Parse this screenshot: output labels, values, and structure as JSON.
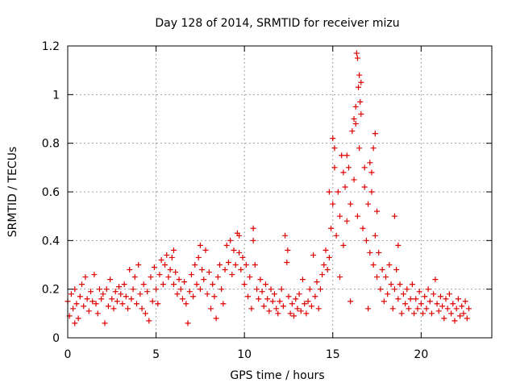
{
  "chart_data": {
    "type": "scatter",
    "title": "Day 128 of 2014, SRMTID for receiver mizu",
    "xlabel": "GPS time / hours",
    "ylabel": "SRMTID / TECUs",
    "xlim": [
      0,
      24
    ],
    "ylim": [
      0,
      1.2
    ],
    "xticks": [
      0,
      5,
      10,
      15,
      20
    ],
    "xtick_labels": [
      "0",
      "5",
      "10",
      "15",
      "20"
    ],
    "yticks": [
      0,
      0.2,
      0.4,
      0.6,
      0.8,
      1.0,
      1.2
    ],
    "ytick_labels": [
      "0",
      "0.2",
      "0.4",
      "0.6",
      "0.8",
      "1",
      "1.2"
    ],
    "grid": true,
    "marker": "+",
    "series": [
      {
        "name": "SRMTID",
        "color": "#e00000",
        "points": [
          [
            0.0,
            0.15
          ],
          [
            0.1,
            0.09
          ],
          [
            0.2,
            0.18
          ],
          [
            0.3,
            0.12
          ],
          [
            0.4,
            0.2
          ],
          [
            0.5,
            0.14
          ],
          [
            0.6,
            0.08
          ],
          [
            0.7,
            0.17
          ],
          [
            0.8,
            0.22
          ],
          [
            0.9,
            0.13
          ],
          [
            1.0,
            0.25
          ],
          [
            1.1,
            0.16
          ],
          [
            1.2,
            0.11
          ],
          [
            1.3,
            0.19
          ],
          [
            1.4,
            0.15
          ],
          [
            1.5,
            0.26
          ],
          [
            1.6,
            0.14
          ],
          [
            1.7,
            0.1
          ],
          [
            1.8,
            0.2
          ],
          [
            1.9,
            0.16
          ],
          [
            2.0,
            0.18
          ],
          [
            2.1,
            0.06
          ],
          [
            2.2,
            0.2
          ],
          [
            2.3,
            0.13
          ],
          [
            2.4,
            0.24
          ],
          [
            2.5,
            0.16
          ],
          [
            2.6,
            0.12
          ],
          [
            2.7,
            0.19
          ],
          [
            2.8,
            0.15
          ],
          [
            2.9,
            0.21
          ],
          [
            3.0,
            0.18
          ],
          [
            3.1,
            0.14
          ],
          [
            3.2,
            0.22
          ],
          [
            3.3,
            0.17
          ],
          [
            3.4,
            0.12
          ],
          [
            3.5,
            0.28
          ],
          [
            3.6,
            0.16
          ],
          [
            3.7,
            0.2
          ],
          [
            3.8,
            0.25
          ],
          [
            3.9,
            0.14
          ],
          [
            4.0,
            0.3
          ],
          [
            4.1,
            0.18
          ],
          [
            4.2,
            0.12
          ],
          [
            4.3,
            0.22
          ],
          [
            4.4,
            0.1
          ],
          [
            4.5,
            0.19
          ],
          [
            4.6,
            0.07
          ],
          [
            4.7,
            0.25
          ],
          [
            4.8,
            0.15
          ],
          [
            4.9,
            0.29
          ],
          [
            5.0,
            0.2
          ],
          [
            5.1,
            0.14
          ],
          [
            5.2,
            0.26
          ],
          [
            5.3,
            0.32
          ],
          [
            5.4,
            0.22
          ],
          [
            5.5,
            0.3
          ],
          [
            5.6,
            0.34
          ],
          [
            5.7,
            0.25
          ],
          [
            5.8,
            0.28
          ],
          [
            5.9,
            0.33
          ],
          [
            6.0,
            0.22
          ],
          [
            6.1,
            0.27
          ],
          [
            6.2,
            0.18
          ],
          [
            6.3,
            0.24
          ],
          [
            6.4,
            0.2
          ],
          [
            6.5,
            0.16
          ],
          [
            6.6,
            0.23
          ],
          [
            6.7,
            0.14
          ],
          [
            6.8,
            0.06
          ],
          [
            6.9,
            0.19
          ],
          [
            7.0,
            0.26
          ],
          [
            7.1,
            0.17
          ],
          [
            7.2,
            0.3
          ],
          [
            7.3,
            0.22
          ],
          [
            7.4,
            0.33
          ],
          [
            7.5,
            0.2
          ],
          [
            7.6,
            0.28
          ],
          [
            7.7,
            0.24
          ],
          [
            7.8,
            0.36
          ],
          [
            7.9,
            0.18
          ],
          [
            8.0,
            0.27
          ],
          [
            8.1,
            0.12
          ],
          [
            8.2,
            0.22
          ],
          [
            8.3,
            0.17
          ],
          [
            8.4,
            0.08
          ],
          [
            8.5,
            0.25
          ],
          [
            8.6,
            0.3
          ],
          [
            8.7,
            0.2
          ],
          [
            8.8,
            0.14
          ],
          [
            8.9,
            0.28
          ],
          [
            9.0,
            0.38
          ],
          [
            9.1,
            0.31
          ],
          [
            9.2,
            0.4
          ],
          [
            9.3,
            0.26
          ],
          [
            9.4,
            0.36
          ],
          [
            9.5,
            0.3
          ],
          [
            9.6,
            0.43
          ],
          [
            9.7,
            0.35
          ],
          [
            9.8,
            0.28
          ],
          [
            9.9,
            0.33
          ],
          [
            10.0,
            0.22
          ],
          [
            10.1,
            0.3
          ],
          [
            10.2,
            0.17
          ],
          [
            10.3,
            0.25
          ],
          [
            10.4,
            0.12
          ],
          [
            10.5,
            0.4
          ],
          [
            10.6,
            0.3
          ],
          [
            10.7,
            0.2
          ],
          [
            10.8,
            0.16
          ],
          [
            10.9,
            0.24
          ],
          [
            11.0,
            0.19
          ],
          [
            11.1,
            0.13
          ],
          [
            11.2,
            0.22
          ],
          [
            11.3,
            0.16
          ],
          [
            11.4,
            0.11
          ],
          [
            11.5,
            0.2
          ],
          [
            11.6,
            0.15
          ],
          [
            11.7,
            0.18
          ],
          [
            11.8,
            0.12
          ],
          [
            11.9,
            0.1
          ],
          [
            12.0,
            0.15
          ],
          [
            12.1,
            0.2
          ],
          [
            12.2,
            0.13
          ],
          [
            12.3,
            0.42
          ],
          [
            12.4,
            0.31
          ],
          [
            12.5,
            0.17
          ],
          [
            12.6,
            0.1
          ],
          [
            12.7,
            0.14
          ],
          [
            12.8,
            0.09
          ],
          [
            12.9,
            0.16
          ],
          [
            13.0,
            0.12
          ],
          [
            13.1,
            0.18
          ],
          [
            13.2,
            0.11
          ],
          [
            13.3,
            0.24
          ],
          [
            13.4,
            0.14
          ],
          [
            13.5,
            0.1
          ],
          [
            13.6,
            0.15
          ],
          [
            13.7,
            0.2
          ],
          [
            13.8,
            0.13
          ],
          [
            13.9,
            0.34
          ],
          [
            14.0,
            0.17
          ],
          [
            14.1,
            0.23
          ],
          [
            14.2,
            0.12
          ],
          [
            14.3,
            0.2
          ],
          [
            14.4,
            0.26
          ],
          [
            14.5,
            0.3
          ],
          [
            14.6,
            0.36
          ],
          [
            14.7,
            0.28
          ],
          [
            14.8,
            0.33
          ],
          [
            14.9,
            0.45
          ],
          [
            15.0,
            0.55
          ],
          [
            15.1,
            0.7
          ],
          [
            15.2,
            0.42
          ],
          [
            15.3,
            0.6
          ],
          [
            15.4,
            0.5
          ],
          [
            15.5,
            0.75
          ],
          [
            15.6,
            0.38
          ],
          [
            15.7,
            0.62
          ],
          [
            15.8,
            0.48
          ],
          [
            15.9,
            0.7
          ],
          [
            16.0,
            0.55
          ],
          [
            16.1,
            0.85
          ],
          [
            16.2,
            0.65
          ],
          [
            16.3,
            0.95
          ],
          [
            16.4,
            0.5
          ],
          [
            16.5,
            0.78
          ],
          [
            16.6,
            1.05
          ],
          [
            16.7,
            0.45
          ],
          [
            16.8,
            0.62
          ],
          [
            16.9,
            0.4
          ],
          [
            17.0,
            0.55
          ],
          [
            17.1,
            0.35
          ],
          [
            17.2,
            0.68
          ],
          [
            17.3,
            0.3
          ],
          [
            17.4,
            0.42
          ],
          [
            17.5,
            0.25
          ],
          [
            17.6,
            0.35
          ],
          [
            17.7,
            0.2
          ],
          [
            17.8,
            0.28
          ],
          [
            17.9,
            0.15
          ],
          [
            18.0,
            0.25
          ],
          [
            18.1,
            0.18
          ],
          [
            18.2,
            0.3
          ],
          [
            18.3,
            0.22
          ],
          [
            18.4,
            0.12
          ],
          [
            18.5,
            0.2
          ],
          [
            18.6,
            0.28
          ],
          [
            18.7,
            0.16
          ],
          [
            18.8,
            0.22
          ],
          [
            18.9,
            0.1
          ],
          [
            19.0,
            0.18
          ],
          [
            19.1,
            0.14
          ],
          [
            19.2,
            0.2
          ],
          [
            19.3,
            0.12
          ],
          [
            19.4,
            0.16
          ],
          [
            19.5,
            0.22
          ],
          [
            19.6,
            0.1
          ],
          [
            19.7,
            0.16
          ],
          [
            19.8,
            0.12
          ],
          [
            19.9,
            0.19
          ],
          [
            20.0,
            0.14
          ],
          [
            20.1,
            0.1
          ],
          [
            20.2,
            0.17
          ],
          [
            20.3,
            0.12
          ],
          [
            20.4,
            0.2
          ],
          [
            20.5,
            0.15
          ],
          [
            20.6,
            0.1
          ],
          [
            20.7,
            0.18
          ],
          [
            20.8,
            0.24
          ],
          [
            20.9,
            0.14
          ],
          [
            21.0,
            0.11
          ],
          [
            21.1,
            0.17
          ],
          [
            21.2,
            0.13
          ],
          [
            21.3,
            0.08
          ],
          [
            21.4,
            0.16
          ],
          [
            21.5,
            0.12
          ],
          [
            21.6,
            0.18
          ],
          [
            21.7,
            0.1
          ],
          [
            21.8,
            0.14
          ],
          [
            21.9,
            0.07
          ],
          [
            22.0,
            0.12
          ],
          [
            22.1,
            0.16
          ],
          [
            22.2,
            0.09
          ],
          [
            22.3,
            0.13
          ],
          [
            22.4,
            0.1
          ],
          [
            22.5,
            0.15
          ],
          [
            22.6,
            0.08
          ],
          [
            22.7,
            0.12
          ],
          [
            16.35,
            1.17
          ],
          [
            16.4,
            1.15
          ],
          [
            16.5,
            1.08
          ],
          [
            16.45,
            1.03
          ],
          [
            16.55,
            0.97
          ],
          [
            16.2,
            0.9
          ],
          [
            16.3,
            0.88
          ],
          [
            16.6,
            0.92
          ],
          [
            15.0,
            0.82
          ],
          [
            15.1,
            0.78
          ],
          [
            15.6,
            0.68
          ],
          [
            15.8,
            0.75
          ],
          [
            17.1,
            0.72
          ],
          [
            17.2,
            0.6
          ],
          [
            17.4,
            0.84
          ],
          [
            17.3,
            0.78
          ],
          [
            18.5,
            0.5
          ],
          [
            18.7,
            0.38
          ],
          [
            12.45,
            0.36
          ],
          [
            10.5,
            0.45
          ],
          [
            9.7,
            0.42
          ],
          [
            0.4,
            0.06
          ],
          [
            6.0,
            0.36
          ],
          [
            7.5,
            0.38
          ],
          [
            16.8,
            0.7
          ],
          [
            15.4,
            0.25
          ],
          [
            16.0,
            0.15
          ],
          [
            17.0,
            0.12
          ],
          [
            14.8,
            0.6
          ],
          [
            17.5,
            0.52
          ]
        ]
      }
    ]
  }
}
